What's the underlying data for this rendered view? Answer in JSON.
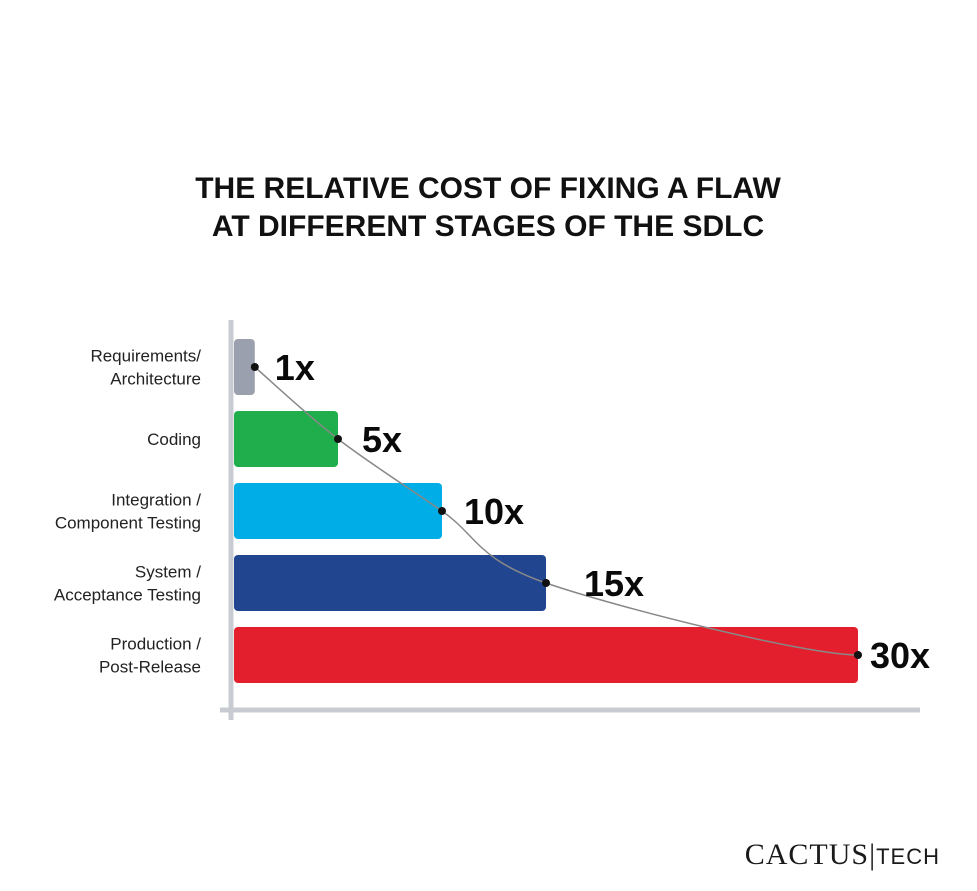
{
  "chart_data": {
    "type": "bar",
    "orientation": "horizontal",
    "title_lines": [
      "THE RELATIVE COST OF FIXING A FLAW",
      "AT DIFFERENT STAGES OF THE SDLC"
    ],
    "categories": [
      [
        "Requirements/",
        "Architecture"
      ],
      [
        "Coding"
      ],
      [
        "Integration /",
        "Component Testing"
      ],
      [
        "System /",
        "Acceptance Testing"
      ],
      [
        "Production /",
        "Post-Release"
      ]
    ],
    "values": [
      1,
      5,
      10,
      15,
      30
    ],
    "value_labels": [
      "1x",
      "5x",
      "10x",
      "15x",
      "30x"
    ],
    "bar_colors": [
      "#9aa0ad",
      "#1fae4b",
      "#00ade6",
      "#21458f",
      "#e41f2d"
    ],
    "xlim": [
      0,
      30
    ],
    "grid": false,
    "legend": "none",
    "trend_curve": true
  },
  "logo": {
    "brand_pre": "CA",
    "brand_accent": "C",
    "brand_post": "TUS",
    "separator": "|",
    "suffix": "TECH",
    "accent_color": "#e41f2d"
  }
}
